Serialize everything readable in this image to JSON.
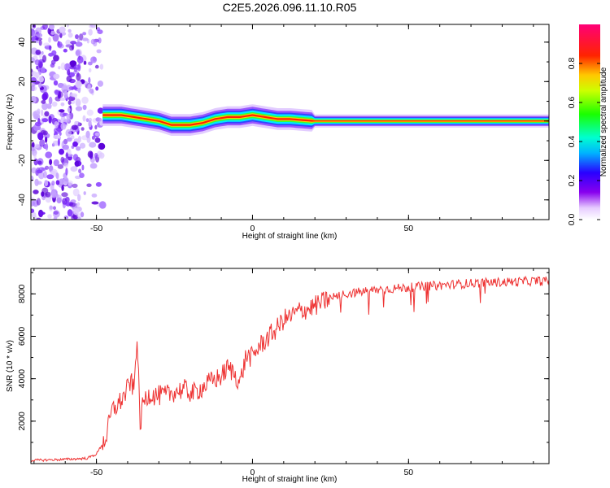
{
  "title": "C2E5.2026.096.11.10.R05",
  "colors": {
    "snr_line": "#ee3333"
  },
  "chart_data": [
    {
      "type": "heatmap",
      "title": "C2E5.2026.096.11.10.R05",
      "xlabel": "Height of straight line (km)",
      "ylabel": "Frequency (Hz)",
      "xlim": [
        -71,
        95
      ],
      "ylim": [
        -50,
        49
      ],
      "xticks": [
        -50,
        0,
        50
      ],
      "yticks": [
        -40,
        -20,
        0,
        20,
        40
      ],
      "colorbar": {
        "label": "Normalized spectral amplitude",
        "range": [
          0,
          1
        ],
        "ticks": [
          0.0,
          0.2,
          0.4,
          0.6,
          0.8
        ]
      },
      "ridge": {
        "noise_region_x": [
          -71,
          -50
        ],
        "center_freq_x": [
          -48,
          -42,
          -38,
          -34,
          -30,
          -26,
          -20,
          -16,
          -12,
          -8,
          -4,
          0,
          4,
          8,
          12,
          20,
          30,
          50,
          70,
          95
        ],
        "center_freq_y": [
          3,
          3,
          2,
          1,
          0,
          -2,
          -2,
          -1,
          1,
          2,
          2,
          3,
          2,
          1,
          1,
          0,
          0,
          0,
          0,
          0
        ]
      }
    },
    {
      "type": "line",
      "xlabel": "Height of straight line (km)",
      "ylabel": "SNR (10 * v/v)",
      "xlim": [
        -71,
        95
      ],
      "ylim": [
        0,
        9200
      ],
      "xticks": [
        -50,
        0,
        50
      ],
      "yticks": [
        2000,
        4000,
        6000,
        8000
      ],
      "series": [
        {
          "name": "SNR",
          "x": [
            -71,
            -60,
            -53,
            -50,
            -47,
            -45,
            -43,
            -41,
            -39,
            -38,
            -37,
            -36,
            -35,
            -33,
            -31,
            -28,
            -25,
            -22,
            -19,
            -16,
            -13,
            -10,
            -8,
            -6,
            -4,
            -2,
            0,
            2,
            4,
            6,
            8,
            10,
            12,
            15,
            18,
            21,
            25,
            30,
            35,
            40,
            50,
            60,
            70,
            80,
            90,
            95
          ],
          "y": [
            150,
            200,
            250,
            450,
            1200,
            2500,
            2800,
            3200,
            3900,
            3400,
            6100,
            1800,
            2900,
            3300,
            3200,
            3200,
            3400,
            3500,
            3300,
            3600,
            3900,
            4100,
            4500,
            4300,
            3800,
            5100,
            5000,
            5500,
            5800,
            6100,
            6400,
            6800,
            6900,
            7200,
            7300,
            7500,
            7800,
            8000,
            8100,
            8200,
            8300,
            8400,
            8500,
            8550,
            8600,
            8600
          ]
        }
      ]
    }
  ]
}
